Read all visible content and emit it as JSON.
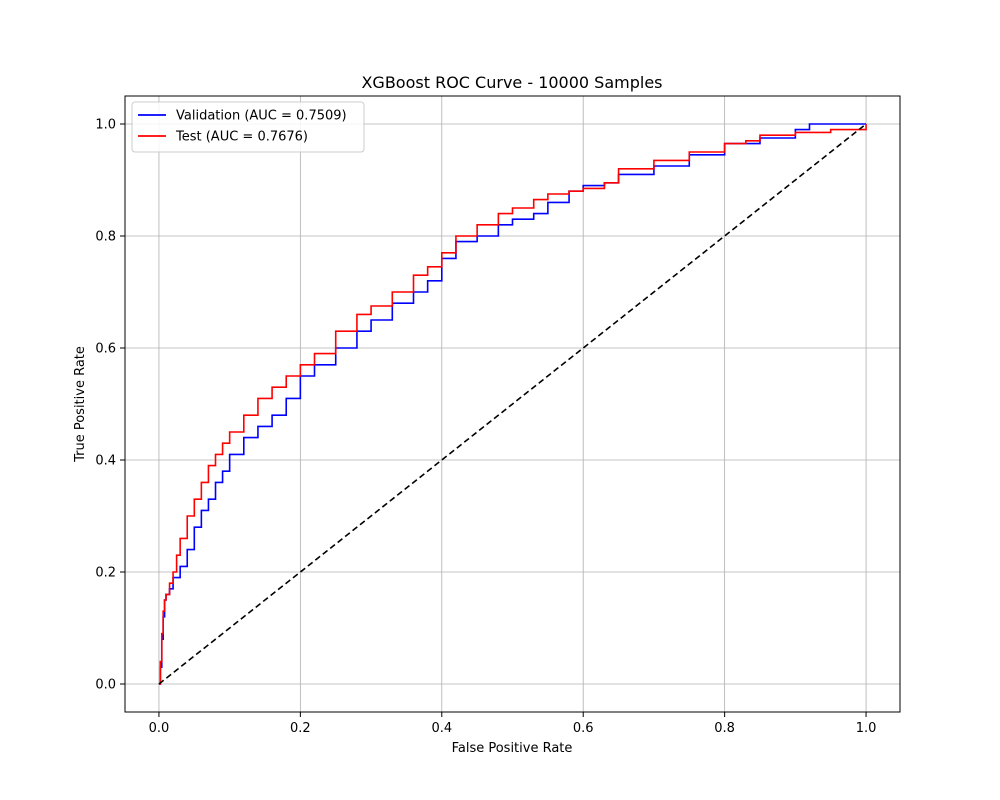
{
  "chart_data": {
    "type": "line",
    "title": "XGBoost ROC Curve - 10000 Samples",
    "xlabel": "False Positive Rate",
    "ylabel": "True Positive Rate",
    "xlim": [
      -0.048,
      1.048
    ],
    "ylim": [
      -0.05,
      1.05
    ],
    "xticks": [
      0.0,
      0.2,
      0.4,
      0.6,
      0.8,
      1.0
    ],
    "yticks": [
      0.0,
      0.2,
      0.4,
      0.6,
      0.8,
      1.0
    ],
    "xtick_labels": [
      "0.0",
      "0.2",
      "0.4",
      "0.6",
      "0.8",
      "1.0"
    ],
    "ytick_labels": [
      "0.0",
      "0.2",
      "0.4",
      "0.6",
      "0.8",
      "1.0"
    ],
    "grid": true,
    "legend_position": "top-left",
    "series": [
      {
        "name": "Validation (AUC = 0.7509)",
        "color": "#0000ff",
        "x": [
          0.0,
          0.002,
          0.004,
          0.006,
          0.008,
          0.01,
          0.015,
          0.02,
          0.03,
          0.04,
          0.05,
          0.06,
          0.07,
          0.08,
          0.09,
          0.1,
          0.12,
          0.14,
          0.16,
          0.18,
          0.2,
          0.22,
          0.25,
          0.28,
          0.3,
          0.33,
          0.36,
          0.38,
          0.4,
          0.42,
          0.45,
          0.48,
          0.5,
          0.53,
          0.55,
          0.58,
          0.6,
          0.63,
          0.65,
          0.7,
          0.75,
          0.8,
          0.85,
          0.9,
          0.92,
          0.95,
          1.0
        ],
        "y": [
          0.0,
          0.03,
          0.08,
          0.12,
          0.15,
          0.16,
          0.17,
          0.19,
          0.21,
          0.24,
          0.28,
          0.31,
          0.33,
          0.36,
          0.38,
          0.41,
          0.44,
          0.46,
          0.48,
          0.51,
          0.55,
          0.57,
          0.6,
          0.63,
          0.65,
          0.68,
          0.7,
          0.72,
          0.76,
          0.79,
          0.8,
          0.82,
          0.83,
          0.84,
          0.86,
          0.88,
          0.89,
          0.895,
          0.91,
          0.925,
          0.945,
          0.965,
          0.975,
          0.99,
          1.0,
          1.0,
          1.0
        ]
      },
      {
        "name": "Test (AUC = 0.7676)",
        "color": "#ff0000",
        "x": [
          0.0,
          0.002,
          0.004,
          0.006,
          0.008,
          0.01,
          0.015,
          0.02,
          0.025,
          0.03,
          0.04,
          0.05,
          0.06,
          0.07,
          0.08,
          0.09,
          0.1,
          0.12,
          0.14,
          0.16,
          0.18,
          0.2,
          0.22,
          0.25,
          0.28,
          0.3,
          0.33,
          0.36,
          0.38,
          0.4,
          0.42,
          0.45,
          0.48,
          0.5,
          0.53,
          0.55,
          0.58,
          0.6,
          0.63,
          0.65,
          0.7,
          0.75,
          0.8,
          0.83,
          0.85,
          0.9,
          0.95,
          1.0
        ],
        "y": [
          0.0,
          0.04,
          0.09,
          0.13,
          0.15,
          0.16,
          0.18,
          0.2,
          0.23,
          0.26,
          0.3,
          0.33,
          0.36,
          0.39,
          0.41,
          0.43,
          0.45,
          0.48,
          0.51,
          0.53,
          0.55,
          0.57,
          0.59,
          0.63,
          0.66,
          0.675,
          0.7,
          0.73,
          0.745,
          0.77,
          0.8,
          0.82,
          0.84,
          0.85,
          0.865,
          0.875,
          0.88,
          0.885,
          0.895,
          0.92,
          0.935,
          0.95,
          0.965,
          0.97,
          0.98,
          0.985,
          0.99,
          1.0
        ]
      },
      {
        "name": "",
        "color": "#000000",
        "dashed": true,
        "x": [
          0.0,
          1.0
        ],
        "y": [
          0.0,
          1.0
        ]
      }
    ]
  }
}
